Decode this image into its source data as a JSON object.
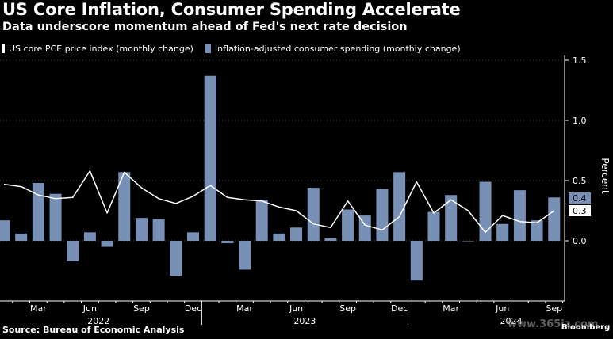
{
  "header": {
    "title": "US Core Inflation, Consumer Spending Accelerate",
    "subtitle": "Data underscore momentum ahead of Fed's next rate decision"
  },
  "legend": {
    "line_label": "US core PCE price index (monthly change)",
    "bar_label": "Inflation-adjusted consumer spending (monthly change)"
  },
  "footer": {
    "source": "Source: Bureau of Economic Analysis",
    "logo": "Bloomberg",
    "watermark": "www.365jz.com"
  },
  "colors": {
    "bar": "#7990b6",
    "line": "#ffffff",
    "background": "#000000",
    "grid": "#444444"
  },
  "chart_data": {
    "type": "bar",
    "title": "US Core Inflation, Consumer Spending Accelerate",
    "ylabel": "Percent",
    "ylim": [
      -0.5,
      1.5
    ],
    "yticks": [
      0.0,
      0.5,
      1.0,
      1.5
    ],
    "ytick_labels": [
      "0.0",
      "0.5",
      "1.0",
      "1.5"
    ],
    "categories": [
      "Jan 2022",
      "Feb 2022",
      "Mar 2022",
      "Apr 2022",
      "May 2022",
      "Jun 2022",
      "Jul 2022",
      "Aug 2022",
      "Sep 2022",
      "Oct 2022",
      "Nov 2022",
      "Dec 2022",
      "Jan 2023",
      "Feb 2023",
      "Mar 2023",
      "Apr 2023",
      "May 2023",
      "Jun 2023",
      "Jul 2023",
      "Aug 2023",
      "Sep 2023",
      "Oct 2023",
      "Nov 2023",
      "Dec 2023",
      "Jan 2024",
      "Feb 2024",
      "Mar 2024",
      "Apr 2024",
      "May 2024",
      "Jun 2024",
      "Jul 2024",
      "Aug 2024",
      "Sep 2024"
    ],
    "series": [
      {
        "name": "Inflation-adjusted consumer spending (monthly change)",
        "type": "bar",
        "values": [
          0.17,
          0.06,
          0.48,
          0.39,
          -0.17,
          0.07,
          -0.05,
          0.57,
          0.19,
          0.18,
          -0.29,
          0.07,
          1.37,
          -0.02,
          -0.24,
          0.34,
          0.06,
          0.11,
          0.44,
          0.02,
          0.26,
          0.21,
          0.43,
          0.57,
          -0.33,
          0.24,
          0.38,
          0.0,
          0.49,
          0.14,
          0.42,
          0.17,
          0.36
        ]
      },
      {
        "name": "US core PCE price index (monthly change)",
        "type": "line",
        "values": [
          0.47,
          0.45,
          0.38,
          0.35,
          0.36,
          0.58,
          0.23,
          0.57,
          0.44,
          0.35,
          0.31,
          0.37,
          0.46,
          0.36,
          0.34,
          0.33,
          0.28,
          0.25,
          0.14,
          0.11,
          0.33,
          0.13,
          0.09,
          0.2,
          0.49,
          0.23,
          0.34,
          0.25,
          0.07,
          0.21,
          0.16,
          0.15,
          0.25
        ]
      }
    ],
    "x_tick_labels": [
      {
        "index": 2,
        "label": "Mar"
      },
      {
        "index": 5,
        "label": "Jun"
      },
      {
        "index": 8,
        "label": "Sep"
      },
      {
        "index": 11,
        "label": "Dec"
      },
      {
        "index": 14,
        "label": "Mar"
      },
      {
        "index": 17,
        "label": "Jun"
      },
      {
        "index": 20,
        "label": "Sep"
      },
      {
        "index": 23,
        "label": "Dec"
      },
      {
        "index": 26,
        "label": "Mar"
      },
      {
        "index": 29,
        "label": "Jun"
      },
      {
        "index": 32,
        "label": "Sep"
      }
    ],
    "year_labels": [
      {
        "index": 5,
        "label": "2022"
      },
      {
        "index": 17,
        "label": "2023"
      },
      {
        "index": 29,
        "label": "2024"
      }
    ],
    "end_value_labels": [
      {
        "value": 0.4,
        "label": "0.4",
        "series": "bar"
      },
      {
        "value": 0.3,
        "label": "0.3",
        "series": "line"
      }
    ]
  }
}
